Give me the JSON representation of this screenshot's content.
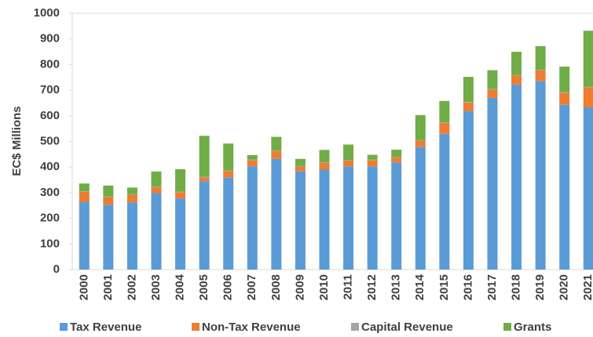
{
  "chart_data": {
    "type": "stacked_bar",
    "y_label": "EC$ Millions",
    "categories": [
      "2000",
      "2001",
      "2002",
      "2003",
      "2004",
      "2005",
      "2006",
      "2007",
      "2008",
      "2009",
      "2010",
      "2011",
      "2012",
      "2013",
      "2014",
      "2015",
      "2016",
      "2017",
      "2018",
      "2019",
      "2020",
      "2021"
    ],
    "series": [
      {
        "name": "Tax Revenue",
        "color": "#5b9bd5",
        "values": [
          263,
          253,
          262,
          298,
          278,
          345,
          360,
          403,
          432,
          383,
          390,
          403,
          403,
          418,
          478,
          530,
          618,
          670,
          722,
          735,
          643,
          633
        ]
      },
      {
        "name": "Non-Tax Revenue",
        "color": "#ed7d31",
        "values": [
          40,
          30,
          30,
          24,
          24,
          15,
          25,
          24,
          30,
          19,
          27,
          22,
          24,
          19,
          25,
          42,
          34,
          32,
          36,
          43,
          47,
          79
        ]
      },
      {
        "name": "Capital Revenue",
        "color": "#a5a5a5",
        "values": [
          2,
          2,
          2,
          2,
          2,
          2,
          2,
          2,
          2,
          2,
          2,
          2,
          2,
          2,
          2,
          2,
          2,
          2,
          2,
          2,
          2,
          2
        ]
      },
      {
        "name": "Grants",
        "color": "#70ad47",
        "values": [
          31,
          43,
          26,
          59,
          88,
          160,
          105,
          18,
          54,
          28,
          48,
          61,
          19,
          29,
          98,
          84,
          98,
          74,
          90,
          92,
          100,
          218
        ]
      }
    ],
    "ylim": [
      0,
      1000
    ],
    "yticks": [
      0,
      100,
      200,
      300,
      400,
      500,
      600,
      700,
      800,
      900,
      1000
    ],
    "grid": false,
    "legend": "bottom"
  }
}
